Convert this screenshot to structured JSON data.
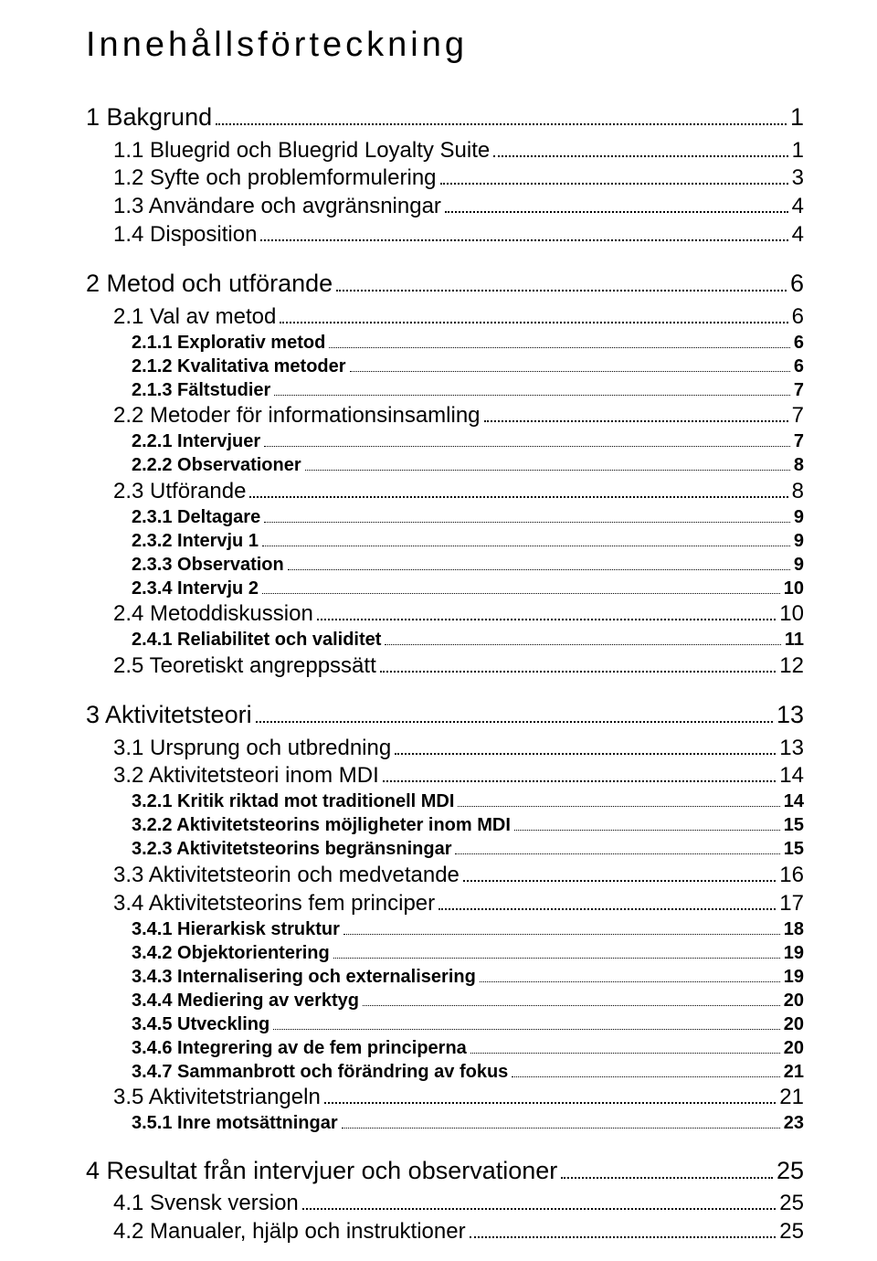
{
  "title": "Innehållsförteckning",
  "entries": [
    {
      "level": 1,
      "label": "1 Bakgrund",
      "page": "1"
    },
    {
      "level": 2,
      "label": "1.1 Bluegrid och Bluegrid Loyalty Suite",
      "page": "1"
    },
    {
      "level": 2,
      "label": "1.2 Syfte och problemformulering",
      "page": "3"
    },
    {
      "level": 2,
      "label": "1.3 Användare och avgränsningar",
      "page": "4"
    },
    {
      "level": 2,
      "label": "1.4 Disposition",
      "page": "4"
    },
    {
      "level": 1,
      "label": "2 Metod och utförande",
      "page": "6"
    },
    {
      "level": 2,
      "label": "2.1 Val av metod",
      "page": "6"
    },
    {
      "level": 3,
      "label": "2.1.1 Explorativ metod",
      "page": "6"
    },
    {
      "level": 3,
      "label": "2.1.2 Kvalitativa metoder",
      "page": "6"
    },
    {
      "level": 3,
      "label": "2.1.3 Fältstudier",
      "page": "7"
    },
    {
      "level": 2,
      "label": "2.2 Metoder för informationsinsamling",
      "page": "7"
    },
    {
      "level": 3,
      "label": "2.2.1 Intervjuer",
      "page": "7"
    },
    {
      "level": 3,
      "label": "2.2.2 Observationer",
      "page": "8"
    },
    {
      "level": 2,
      "label": "2.3 Utförande",
      "page": "8"
    },
    {
      "level": 3,
      "label": "2.3.1 Deltagare",
      "page": "9"
    },
    {
      "level": 3,
      "label": "2.3.2 Intervju 1",
      "page": "9"
    },
    {
      "level": 3,
      "label": "2.3.3 Observation",
      "page": "9"
    },
    {
      "level": 3,
      "label": "2.3.4 Intervju 2",
      "page": "10"
    },
    {
      "level": 2,
      "label": "2.4 Metoddiskussion",
      "page": "10"
    },
    {
      "level": 3,
      "label": "2.4.1 Reliabilitet och validitet",
      "page": "11"
    },
    {
      "level": 2,
      "label": "2.5 Teoretiskt angreppssätt",
      "page": "12"
    },
    {
      "level": 1,
      "label": "3 Aktivitetsteori",
      "page": "13"
    },
    {
      "level": 2,
      "label": "3.1 Ursprung och utbredning",
      "page": "13"
    },
    {
      "level": 2,
      "label": "3.2 Aktivitetsteori inom MDI",
      "page": "14"
    },
    {
      "level": 3,
      "label": "3.2.1 Kritik riktad mot traditionell MDI",
      "page": "14"
    },
    {
      "level": 3,
      "label": "3.2.2 Aktivitetsteorins möjligheter inom MDI",
      "page": "15"
    },
    {
      "level": 3,
      "label": "3.2.3 Aktivitetsteorins begränsningar",
      "page": "15"
    },
    {
      "level": 2,
      "label": "3.3 Aktivitetsteorin och medvetande",
      "page": "16"
    },
    {
      "level": 2,
      "label": "3.4 Aktivitetsteorins fem principer",
      "page": "17"
    },
    {
      "level": 3,
      "label": "3.4.1 Hierarkisk struktur",
      "page": "18"
    },
    {
      "level": 3,
      "label": "3.4.2 Objektorientering",
      "page": "19"
    },
    {
      "level": 3,
      "label": "3.4.3 Internalisering och externalisering",
      "page": "19"
    },
    {
      "level": 3,
      "label": "3.4.4 Mediering av verktyg",
      "page": "20"
    },
    {
      "level": 3,
      "label": "3.4.5 Utveckling",
      "page": "20"
    },
    {
      "level": 3,
      "label": "3.4.6 Integrering av de fem principerna",
      "page": "20"
    },
    {
      "level": 3,
      "label": "3.4.7 Sammanbrott och förändring av fokus",
      "page": "21"
    },
    {
      "level": 2,
      "label": "3.5 Aktivitetstriangeln",
      "page": "21"
    },
    {
      "level": 3,
      "label": "3.5.1 Inre motsättningar",
      "page": "23"
    },
    {
      "level": 1,
      "label": "4 Resultat från intervjuer och observationer",
      "page": "25"
    },
    {
      "level": 2,
      "label": "4.1 Svensk version",
      "page": "25"
    },
    {
      "level": 2,
      "label": "4.2 Manualer, hjälp och instruktioner",
      "page": "25"
    }
  ]
}
